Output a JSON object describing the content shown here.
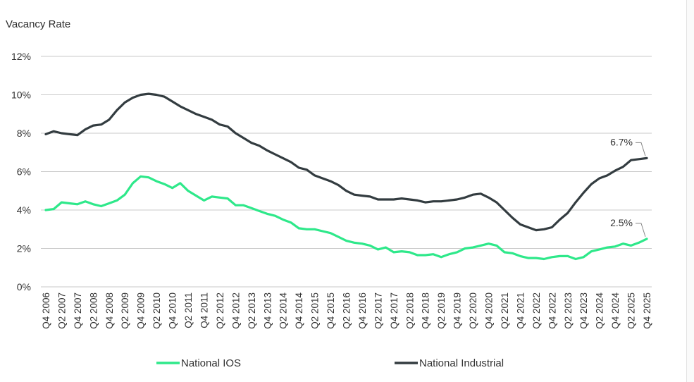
{
  "chart_data": {
    "type": "line",
    "ylabel": "Vacancy Rate",
    "ylim": [
      0,
      12
    ],
    "yticks": [
      "0%",
      "2%",
      "4%",
      "6%",
      "8%",
      "10%",
      "12%"
    ],
    "x_tick_labels": [
      "Q4 2006",
      "Q2 2007",
      "Q4 2007",
      "Q2 2008",
      "Q4 2008",
      "Q2 2009",
      "Q4 2009",
      "Q2 2010",
      "Q4 2010",
      "Q2 2011",
      "Q4 2011",
      "Q2 2012",
      "Q4 2012",
      "Q2 2013",
      "Q4 2013",
      "Q2 2014",
      "Q4 2014",
      "Q2 2015",
      "Q4 2015",
      "Q2 2016",
      "Q4 2016",
      "Q2 2017",
      "Q4 2017",
      "Q2 2018",
      "Q4 2018",
      "Q2 2019",
      "Q4 2019",
      "Q2 2020",
      "Q4 2020",
      "Q2 2021",
      "Q4 2021",
      "Q2 2022",
      "Q4 2022",
      "Q2 2023",
      "Q4 2023",
      "Q2 2024",
      "Q4 2024",
      "Q2 2025",
      "Q4 2025"
    ],
    "grid": true,
    "legend_placement": "bottom",
    "series": [
      {
        "name": "National IOS",
        "color": "#2ee88a",
        "end_label": "2.5%",
        "values": [
          4.0,
          4.05,
          4.4,
          4.35,
          4.3,
          4.45,
          4.3,
          4.2,
          4.35,
          4.5,
          4.8,
          5.4,
          5.75,
          5.7,
          5.5,
          5.35,
          5.15,
          5.4,
          5.0,
          4.75,
          4.5,
          4.7,
          4.65,
          4.6,
          4.25,
          4.25,
          4.1,
          3.95,
          3.8,
          3.7,
          3.5,
          3.35,
          3.05,
          3.0,
          3.0,
          2.9,
          2.8,
          2.6,
          2.4,
          2.3,
          2.25,
          2.15,
          1.95,
          2.05,
          1.8,
          1.85,
          1.8,
          1.65,
          1.65,
          1.7,
          1.55,
          1.7,
          1.8,
          2.0,
          2.05,
          2.15,
          2.25,
          2.15,
          1.8,
          1.75,
          1.6,
          1.5,
          1.5,
          1.45,
          1.55,
          1.6,
          1.6,
          1.45,
          1.55,
          1.85,
          1.95,
          2.05,
          2.1,
          2.25,
          2.15,
          2.3,
          2.5
        ]
      },
      {
        "name": "National Industrial",
        "color": "#333c40",
        "end_label": "6.7%",
        "values": [
          7.95,
          8.1,
          8.0,
          7.95,
          7.9,
          8.2,
          8.4,
          8.45,
          8.7,
          9.2,
          9.6,
          9.85,
          10.0,
          10.05,
          10.0,
          9.9,
          9.65,
          9.4,
          9.2,
          9.0,
          8.85,
          8.7,
          8.45,
          8.35,
          8.0,
          7.75,
          7.5,
          7.35,
          7.1,
          6.9,
          6.7,
          6.5,
          6.2,
          6.1,
          5.8,
          5.65,
          5.5,
          5.3,
          5.0,
          4.8,
          4.75,
          4.7,
          4.55,
          4.55,
          4.55,
          4.6,
          4.55,
          4.5,
          4.4,
          4.45,
          4.45,
          4.5,
          4.55,
          4.65,
          4.8,
          4.85,
          4.65,
          4.4,
          4.0,
          3.6,
          3.25,
          3.1,
          2.95,
          3.0,
          3.1,
          3.5,
          3.85,
          4.4,
          4.9,
          5.35,
          5.65,
          5.8,
          6.05,
          6.25,
          6.6,
          6.65,
          6.7
        ]
      }
    ]
  }
}
